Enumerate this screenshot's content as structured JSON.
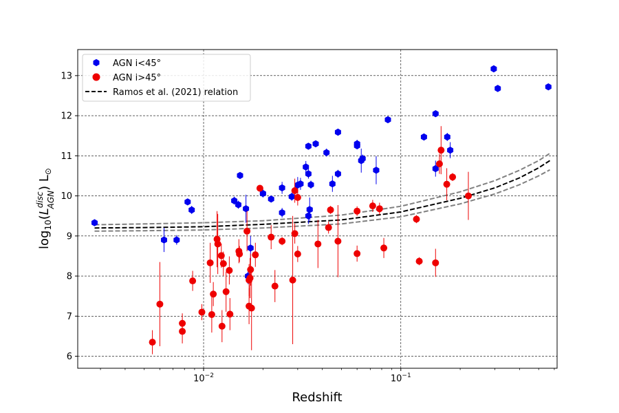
{
  "chart_data": {
    "type": "scatter",
    "xlabel": "Redshift",
    "ylabel": "log10(L_AGN^disc) L⊙",
    "xscale": "log",
    "xlim": [
      0.0023,
      0.62
    ],
    "ylim": [
      5.7,
      13.65
    ],
    "yticks": [
      6,
      7,
      8,
      9,
      10,
      11,
      12,
      13
    ],
    "xticks": [
      {
        "value": 0.01,
        "base": "10",
        "exp": "−2"
      },
      {
        "value": 0.1,
        "base": "10",
        "exp": "−1"
      }
    ],
    "grid": true,
    "legend": {
      "position": "top-left",
      "entries": [
        {
          "label": "AGN i<45°",
          "marker": "hexagon",
          "color": "#0000ee"
        },
        {
          "label": "AGN i>45°",
          "marker": "circle",
          "color": "#ee0000"
        },
        {
          "label": "Ramos et al. (2021) relation",
          "marker": "dashed-line",
          "color": "#000000"
        }
      ]
    },
    "series": [
      {
        "name": "AGN i<45°",
        "color": "#0000ee",
        "marker": "hexagon",
        "points": [
          {
            "x": 0.0028,
            "y": 9.33,
            "err": 0.08
          },
          {
            "x": 0.0063,
            "y": 8.9,
            "err": 0.3
          },
          {
            "x": 0.0073,
            "y": 8.9,
            "err": 0.12
          },
          {
            "x": 0.0083,
            "y": 9.85,
            "err": 0.05
          },
          {
            "x": 0.0087,
            "y": 9.65,
            "err": 0.1
          },
          {
            "x": 0.0143,
            "y": 9.88,
            "err": 0.1
          },
          {
            "x": 0.015,
            "y": 9.78,
            "err": 0.1
          },
          {
            "x": 0.0153,
            "y": 10.51,
            "err": 0.05
          },
          {
            "x": 0.0164,
            "y": 9.68,
            "err": 0.35
          },
          {
            "x": 0.0168,
            "y": 8.0,
            "err": 0.2
          },
          {
            "x": 0.0173,
            "y": 8.7,
            "err": 0.3
          },
          {
            "x": 0.02,
            "y": 10.06,
            "err": 0.1
          },
          {
            "x": 0.022,
            "y": 9.92,
            "err": 0.08
          },
          {
            "x": 0.025,
            "y": 10.2,
            "err": 0.15
          },
          {
            "x": 0.025,
            "y": 9.58,
            "err": 0.12
          },
          {
            "x": 0.028,
            "y": 9.98,
            "err": 0.1
          },
          {
            "x": 0.03,
            "y": 10.27,
            "err": 0.2
          },
          {
            "x": 0.031,
            "y": 10.3,
            "err": 0.15
          },
          {
            "x": 0.033,
            "y": 10.72,
            "err": 0.15
          },
          {
            "x": 0.034,
            "y": 11.24,
            "err": 0.08
          },
          {
            "x": 0.034,
            "y": 10.55,
            "err": 0.12
          },
          {
            "x": 0.034,
            "y": 9.5,
            "err": 0.2
          },
          {
            "x": 0.0345,
            "y": 9.66,
            "err": 0.3
          },
          {
            "x": 0.035,
            "y": 10.28,
            "err": 0.1
          },
          {
            "x": 0.037,
            "y": 11.3,
            "err": 0.05
          },
          {
            "x": 0.042,
            "y": 11.08,
            "err": 0.1
          },
          {
            "x": 0.045,
            "y": 10.3,
            "err": 0.2
          },
          {
            "x": 0.048,
            "y": 11.59,
            "err": 0.05
          },
          {
            "x": 0.048,
            "y": 10.55,
            "err": 0.1
          },
          {
            "x": 0.06,
            "y": 11.3,
            "err": 0.1
          },
          {
            "x": 0.06,
            "y": 11.25,
            "err": 0.05
          },
          {
            "x": 0.063,
            "y": 10.88,
            "err": 0.3
          },
          {
            "x": 0.064,
            "y": 10.93,
            "err": 0.1
          },
          {
            "x": 0.075,
            "y": 10.64,
            "err": 0.35
          },
          {
            "x": 0.086,
            "y": 11.9,
            "err": 0.05
          },
          {
            "x": 0.131,
            "y": 11.47,
            "err": 0.05
          },
          {
            "x": 0.15,
            "y": 12.05,
            "err": 0.05
          },
          {
            "x": 0.15,
            "y": 10.68,
            "err": 0.2
          },
          {
            "x": 0.172,
            "y": 11.47,
            "err": 0.1
          },
          {
            "x": 0.178,
            "y": 11.14,
            "err": 0.2
          },
          {
            "x": 0.296,
            "y": 13.17,
            "err": 0.08
          },
          {
            "x": 0.31,
            "y": 12.68,
            "err": 0.05
          },
          {
            "x": 0.56,
            "y": 12.72,
            "err": 0.05
          }
        ]
      },
      {
        "name": "AGN i>45°",
        "color": "#ee0000",
        "marker": "circle",
        "points": [
          {
            "x": 0.0055,
            "y": 6.35,
            "err": 0.3
          },
          {
            "x": 0.006,
            "y": 7.3,
            "err": 1.05
          },
          {
            "x": 0.0078,
            "y": 6.82,
            "err": 0.25
          },
          {
            "x": 0.0078,
            "y": 6.62,
            "err": 0.3
          },
          {
            "x": 0.0088,
            "y": 7.88,
            "err": 0.25
          },
          {
            "x": 0.0098,
            "y": 7.1,
            "err": 0.2
          },
          {
            "x": 0.0108,
            "y": 8.33,
            "err": 0.5
          },
          {
            "x": 0.011,
            "y": 7.04,
            "err": 0.45
          },
          {
            "x": 0.0112,
            "y": 7.55,
            "err": 0.3
          },
          {
            "x": 0.0117,
            "y": 8.92,
            "err": 0.7
          },
          {
            "x": 0.0118,
            "y": 8.8,
            "err": 0.75
          },
          {
            "x": 0.0123,
            "y": 8.51,
            "err": 0.3
          },
          {
            "x": 0.0124,
            "y": 6.75,
            "err": 0.4
          },
          {
            "x": 0.0126,
            "y": 8.31,
            "err": 0.3
          },
          {
            "x": 0.013,
            "y": 7.61,
            "err": 0.5
          },
          {
            "x": 0.0135,
            "y": 8.14,
            "err": 0.35
          },
          {
            "x": 0.0136,
            "y": 7.05,
            "err": 0.4
          },
          {
            "x": 0.0151,
            "y": 8.62,
            "err": 0.3
          },
          {
            "x": 0.0152,
            "y": 8.55,
            "err": 0.2
          },
          {
            "x": 0.0166,
            "y": 9.12,
            "err": 0.5
          },
          {
            "x": 0.017,
            "y": 7.9,
            "err": 0.4
          },
          {
            "x": 0.017,
            "y": 7.25,
            "err": 0.45
          },
          {
            "x": 0.0172,
            "y": 7.95,
            "err": 0.5
          },
          {
            "x": 0.0173,
            "y": 8.16,
            "err": 0.4
          },
          {
            "x": 0.0175,
            "y": 7.2,
            "err": 1.05
          },
          {
            "x": 0.0183,
            "y": 8.53,
            "err": 0.3
          },
          {
            "x": 0.0193,
            "y": 10.19,
            "err": 0.05
          },
          {
            "x": 0.022,
            "y": 8.97,
            "err": 0.3
          },
          {
            "x": 0.023,
            "y": 7.75,
            "err": 0.4
          },
          {
            "x": 0.025,
            "y": 8.87,
            "err": 0.1
          },
          {
            "x": 0.0283,
            "y": 7.9,
            "err": 1.6
          },
          {
            "x": 0.029,
            "y": 10.13,
            "err": 0.3
          },
          {
            "x": 0.029,
            "y": 9.06,
            "err": 0.25
          },
          {
            "x": 0.03,
            "y": 8.55,
            "err": 0.2
          },
          {
            "x": 0.03,
            "y": 9.96,
            "err": 0.2
          },
          {
            "x": 0.038,
            "y": 8.8,
            "err": 0.6
          },
          {
            "x": 0.043,
            "y": 9.21,
            "err": 0.15
          },
          {
            "x": 0.044,
            "y": 9.65,
            "err": 0.1
          },
          {
            "x": 0.048,
            "y": 8.87,
            "err": 0.9
          },
          {
            "x": 0.06,
            "y": 9.62,
            "err": 0.12
          },
          {
            "x": 0.06,
            "y": 8.56,
            "err": 0.2
          },
          {
            "x": 0.072,
            "y": 9.75,
            "err": 0.15
          },
          {
            "x": 0.078,
            "y": 9.68,
            "err": 0.15
          },
          {
            "x": 0.082,
            "y": 8.7,
            "err": 0.25
          },
          {
            "x": 0.12,
            "y": 9.42,
            "err": 0.1
          },
          {
            "x": 0.124,
            "y": 8.37,
            "err": 0.1
          },
          {
            "x": 0.15,
            "y": 8.33,
            "err": 0.35
          },
          {
            "x": 0.157,
            "y": 10.8,
            "err": 0.25
          },
          {
            "x": 0.16,
            "y": 11.14,
            "err": 0.6
          },
          {
            "x": 0.171,
            "y": 10.29,
            "err": 0.4
          },
          {
            "x": 0.183,
            "y": 10.47,
            "err": 0.1
          },
          {
            "x": 0.22,
            "y": 10.0,
            "err": 0.6
          }
        ]
      },
      {
        "name": "Ramos et al. (2021) relation",
        "type": "line",
        "style": "dashed",
        "color": "#000000",
        "points": [
          {
            "x": 0.0028,
            "y": 9.2
          },
          {
            "x": 0.005,
            "y": 9.21
          },
          {
            "x": 0.01,
            "y": 9.23
          },
          {
            "x": 0.02,
            "y": 9.29
          },
          {
            "x": 0.05,
            "y": 9.4
          },
          {
            "x": 0.1,
            "y": 9.6
          },
          {
            "x": 0.2,
            "y": 9.94
          },
          {
            "x": 0.3,
            "y": 10.2
          },
          {
            "x": 0.4,
            "y": 10.45
          },
          {
            "x": 0.5,
            "y": 10.7
          },
          {
            "x": 0.57,
            "y": 10.88
          }
        ]
      },
      {
        "name": "",
        "type": "line",
        "style": "dashed",
        "color": "#808080",
        "points": [
          {
            "x": 0.0028,
            "y": 9.28
          },
          {
            "x": 0.005,
            "y": 9.3
          },
          {
            "x": 0.01,
            "y": 9.33
          },
          {
            "x": 0.02,
            "y": 9.38
          },
          {
            "x": 0.05,
            "y": 9.52
          },
          {
            "x": 0.1,
            "y": 9.74
          },
          {
            "x": 0.2,
            "y": 10.1
          },
          {
            "x": 0.3,
            "y": 10.38
          },
          {
            "x": 0.4,
            "y": 10.64
          },
          {
            "x": 0.5,
            "y": 10.88
          },
          {
            "x": 0.57,
            "y": 11.06
          }
        ]
      },
      {
        "name": "",
        "type": "line",
        "style": "dashed",
        "color": "#808080",
        "points": [
          {
            "x": 0.0028,
            "y": 9.12
          },
          {
            "x": 0.005,
            "y": 9.13
          },
          {
            "x": 0.01,
            "y": 9.15
          },
          {
            "x": 0.02,
            "y": 9.2
          },
          {
            "x": 0.05,
            "y": 9.3
          },
          {
            "x": 0.1,
            "y": 9.48
          },
          {
            "x": 0.2,
            "y": 9.8
          },
          {
            "x": 0.3,
            "y": 10.05
          },
          {
            "x": 0.4,
            "y": 10.28
          },
          {
            "x": 0.5,
            "y": 10.5
          },
          {
            "x": 0.57,
            "y": 10.65
          }
        ]
      }
    ]
  }
}
